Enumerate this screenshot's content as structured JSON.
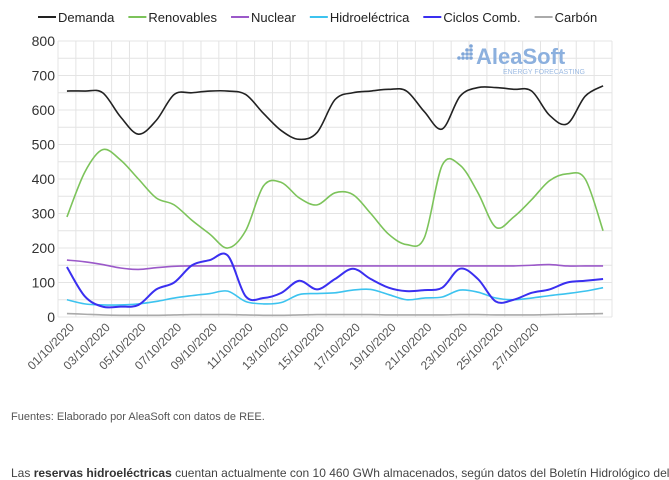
{
  "chart_data": {
    "type": "line",
    "title": "",
    "xlabel": "",
    "ylabel": "",
    "ylim": [
      0,
      800
    ],
    "yticks": [
      0,
      100,
      200,
      300,
      400,
      500,
      600,
      700,
      800
    ],
    "grid": true,
    "legend_position": "top",
    "x": [
      "01/10/2020",
      "02/10/2020",
      "03/10/2020",
      "04/10/2020",
      "05/10/2020",
      "06/10/2020",
      "07/10/2020",
      "08/10/2020",
      "09/10/2020",
      "10/10/2020",
      "11/10/2020",
      "12/10/2020",
      "13/10/2020",
      "14/10/2020",
      "15/10/2020",
      "16/10/2020",
      "17/10/2020",
      "18/10/2020",
      "19/10/2020",
      "20/10/2020",
      "21/10/2020",
      "22/10/2020",
      "23/10/2020",
      "24/10/2020",
      "25/10/2020",
      "26/10/2020",
      "27/10/2020",
      "28/10/2020",
      "29/10/2020",
      "30/10/2020",
      "31/10/2020"
    ],
    "xtick_labels": [
      "01/10/2020",
      "03/10/2020",
      "05/10/2020",
      "07/10/2020",
      "09/10/2020",
      "11/10/2020",
      "13/10/2020",
      "15/10/2020",
      "17/10/2020",
      "19/10/2020",
      "21/10/2020",
      "23/10/2020",
      "25/10/2020",
      "27/10/2020"
    ],
    "series": [
      {
        "name": "Demanda",
        "color": "#222222",
        "values": [
          655,
          655,
          650,
          580,
          530,
          570,
          645,
          650,
          655,
          655,
          645,
          590,
          540,
          515,
          535,
          630,
          650,
          655,
          660,
          655,
          595,
          545,
          640,
          665,
          665,
          660,
          655,
          585,
          560,
          640,
          670
        ]
      },
      {
        "name": "Renovables",
        "color": "#7cc35a",
        "values": [
          290,
          420,
          485,
          455,
          400,
          345,
          325,
          280,
          240,
          200,
          250,
          380,
          390,
          345,
          325,
          360,
          355,
          300,
          240,
          210,
          230,
          440,
          440,
          360,
          260,
          290,
          340,
          395,
          415,
          400,
          250
        ]
      },
      {
        "name": "Nuclear",
        "color": "#9b59c9",
        "values": [
          165,
          160,
          152,
          142,
          138,
          143,
          147,
          148,
          148,
          148,
          148,
          148,
          148,
          148,
          148,
          148,
          148,
          148,
          148,
          148,
          148,
          148,
          148,
          148,
          148,
          148,
          150,
          152,
          148,
          148,
          148
        ]
      },
      {
        "name": "Hidroeléctrica",
        "color": "#3cc3ef",
        "values": [
          50,
          38,
          35,
          35,
          38,
          45,
          55,
          62,
          68,
          75,
          45,
          38,
          42,
          65,
          68,
          70,
          78,
          80,
          65,
          50,
          55,
          58,
          78,
          72,
          55,
          50,
          55,
          62,
          68,
          75,
          85
        ]
      },
      {
        "name": "Ciclos Comb.",
        "color": "#3a2ff0",
        "values": [
          145,
          60,
          30,
          30,
          35,
          80,
          100,
          150,
          165,
          178,
          60,
          55,
          70,
          105,
          80,
          110,
          140,
          110,
          85,
          75,
          78,
          85,
          140,
          110,
          45,
          50,
          70,
          80,
          100,
          105,
          110
        ]
      },
      {
        "name": "Carbón",
        "color": "#aaaaaa",
        "values": [
          10,
          8,
          6,
          5,
          5,
          5,
          6,
          7,
          7,
          7,
          6,
          5,
          5,
          6,
          7,
          7,
          7,
          7,
          6,
          6,
          6,
          6,
          7,
          7,
          6,
          6,
          6,
          7,
          8,
          9,
          10
        ]
      }
    ]
  },
  "watermark": {
    "brand": "AleaSoft",
    "tagline": "ENERGY FORECASTING"
  },
  "source_text": "Fuentes: Elaborado por AleaSoft con datos de REE.",
  "paragraph": {
    "bold": "reservas hidroeléctricas",
    "before": "Las ",
    "after": " cuentan actualmente con 10 460 GWh almacenados, según datos del Boletín Hidrológico del"
  }
}
